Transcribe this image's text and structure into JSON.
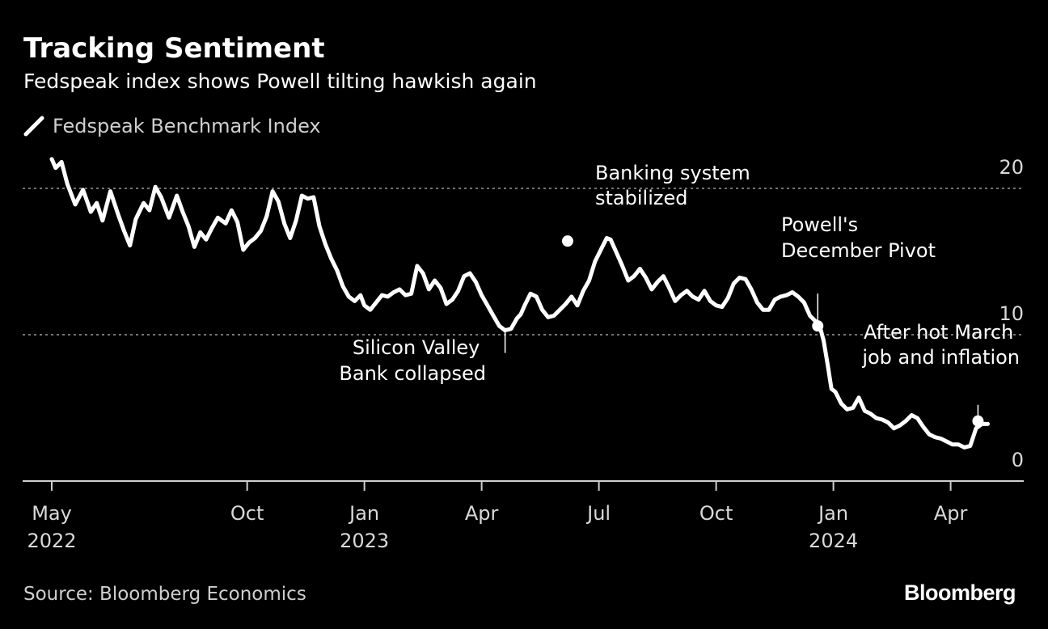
{
  "header": {
    "title": "Tracking Sentiment",
    "subtitle": "Fedspeak index shows Powell tilting hawkish again"
  },
  "legend": {
    "label": "Fedspeak Benchmark Index",
    "icon": "line-swatch-icon"
  },
  "footer": {
    "source": "Source: Bloomberg Economics",
    "logo": "Bloomberg"
  },
  "colors": {
    "background": "#000000",
    "line": "#ffffff",
    "grid": "#9a9a9a",
    "text": "#d9d9d9"
  },
  "chart_data": {
    "type": "line",
    "title": "Tracking Sentiment",
    "subtitle": "Fedspeak index shows Powell tilting hawkish again",
    "xlabel": "",
    "ylabel": "",
    "x_range_months": [
      0,
      24
    ],
    "ylim": [
      0,
      22
    ],
    "yticks": [
      {
        "value": 0,
        "label": "0"
      },
      {
        "value": 10,
        "label": "10"
      },
      {
        "value": 20,
        "label": "20"
      }
    ],
    "gridlines": [
      10,
      20
    ],
    "xticks": [
      {
        "t": 0,
        "month": "May",
        "year": "2022"
      },
      {
        "t": 5,
        "month": "Oct",
        "year": ""
      },
      {
        "t": 8,
        "month": "Jan",
        "year": "2023"
      },
      {
        "t": 11,
        "month": "Apr",
        "year": ""
      },
      {
        "t": 14,
        "month": "Jul",
        "year": ""
      },
      {
        "t": 17,
        "month": "Oct",
        "year": ""
      },
      {
        "t": 20,
        "month": "Jan",
        "year": "2024"
      },
      {
        "t": 23,
        "month": "Apr",
        "year": ""
      }
    ],
    "series": [
      {
        "name": "Fedspeak Benchmark Index",
        "t": [
          0.0,
          0.1,
          0.25,
          0.4,
          0.6,
          0.8,
          1.0,
          1.15,
          1.3,
          1.5,
          1.7,
          1.85,
          2.0,
          2.15,
          2.35,
          2.5,
          2.65,
          2.8,
          3.0,
          3.2,
          3.35,
          3.5,
          3.65,
          3.8,
          3.95,
          4.1,
          4.25,
          4.45,
          4.6,
          4.75,
          4.9,
          5.05,
          5.2,
          5.35,
          5.5,
          5.65,
          5.8,
          5.95,
          6.1,
          6.25,
          6.4,
          6.55,
          6.7,
          6.85,
          7.0,
          7.15,
          7.3,
          7.45,
          7.6,
          7.75,
          7.9,
          8.0,
          8.15,
          8.3,
          8.45,
          8.6,
          8.75,
          8.9,
          9.05,
          9.2,
          9.35,
          9.5,
          9.65,
          9.8,
          9.95,
          10.1,
          10.25,
          10.4,
          10.55,
          10.7,
          10.85,
          11.0,
          11.15,
          11.3,
          11.45,
          11.6,
          11.75,
          11.9,
          12.0,
          12.1,
          12.25,
          12.4,
          12.55,
          12.7,
          12.85,
          13.0,
          13.15,
          13.3,
          13.45,
          13.6,
          13.75,
          13.9,
          14.05,
          14.2,
          14.3,
          14.45,
          14.6,
          14.75,
          14.9,
          15.05,
          15.2,
          15.35,
          15.5,
          15.65,
          15.8,
          15.95,
          16.1,
          16.25,
          16.4,
          16.55,
          16.7,
          16.85,
          17.0,
          17.15,
          17.3,
          17.45,
          17.6,
          17.75,
          17.9,
          18.05,
          18.2,
          18.35,
          18.5,
          18.65,
          18.8,
          18.95,
          19.1,
          19.25,
          19.4,
          19.55,
          19.65,
          19.75,
          19.85,
          19.95,
          20.05,
          20.2,
          20.35,
          20.5,
          20.65,
          20.8,
          20.95,
          21.1,
          21.25,
          21.4,
          21.55,
          21.7,
          21.85,
          22.0,
          22.15,
          22.3,
          22.45,
          22.6,
          22.75,
          22.9,
          23.05,
          23.2,
          23.35,
          23.5,
          23.65,
          23.8,
          23.95
        ],
        "values": [
          22.0,
          21.4,
          21.8,
          20.3,
          18.9,
          19.9,
          18.4,
          19.0,
          17.8,
          19.8,
          18.2,
          17.1,
          16.1,
          17.9,
          19.0,
          18.5,
          20.1,
          19.4,
          18.0,
          19.5,
          18.4,
          17.4,
          16.0,
          17.0,
          16.5,
          17.3,
          18.0,
          17.6,
          18.5,
          17.7,
          15.8,
          16.3,
          16.6,
          17.1,
          18.1,
          19.8,
          19.1,
          17.6,
          16.6,
          17.8,
          19.5,
          19.3,
          19.4,
          17.4,
          16.2,
          15.2,
          14.4,
          13.3,
          12.6,
          12.3,
          12.7,
          12.0,
          11.7,
          12.2,
          12.7,
          12.6,
          12.9,
          13.1,
          12.7,
          12.8,
          14.7,
          14.2,
          13.1,
          13.7,
          13.2,
          12.1,
          12.4,
          13.0,
          14.0,
          14.2,
          13.6,
          12.7,
          12.0,
          11.3,
          10.6,
          10.3,
          10.4,
          11.1,
          11.4,
          12.0,
          12.8,
          12.6,
          11.7,
          11.2,
          11.3,
          11.7,
          12.1,
          12.6,
          12.0,
          13.0,
          13.7,
          15.0,
          15.8,
          16.6,
          16.5,
          15.6,
          14.7,
          13.7,
          14.0,
          14.5,
          13.9,
          13.1,
          13.6,
          14.0,
          13.2,
          12.3,
          12.7,
          13.0,
          12.6,
          12.4,
          13.0,
          12.3,
          12.0,
          11.9,
          12.5,
          13.5,
          13.9,
          13.8,
          13.1,
          12.2,
          11.7,
          11.7,
          12.4,
          12.6,
          12.7,
          12.9,
          12.6,
          12.2,
          11.3,
          10.9,
          10.6,
          9.6,
          8.0,
          6.3,
          6.1,
          5.3,
          4.9,
          5.0,
          5.7,
          4.8,
          4.6,
          4.3,
          4.2,
          4.0,
          3.6,
          3.8,
          4.1,
          4.5,
          4.3,
          3.7,
          3.2,
          3.0,
          2.9,
          2.7,
          2.5,
          2.5,
          2.3,
          2.4,
          3.6,
          3.9,
          3.9
        ]
      }
    ],
    "markers": [
      {
        "t": 13.2,
        "value": 16.4
      },
      {
        "t": 19.6,
        "value": 10.6
      },
      {
        "t": 23.7,
        "value": 4.1
      }
    ],
    "annotations": [
      {
        "id": "svb",
        "lines": [
          "Silicon Valley",
          "Bank collapsed"
        ]
      },
      {
        "id": "banking",
        "lines": [
          "Banking system",
          "stabilized"
        ]
      },
      {
        "id": "pivot",
        "lines": [
          "Powell's",
          "December Pivot"
        ]
      },
      {
        "id": "march",
        "lines": [
          "After hot March",
          "job and inflation"
        ]
      }
    ]
  }
}
